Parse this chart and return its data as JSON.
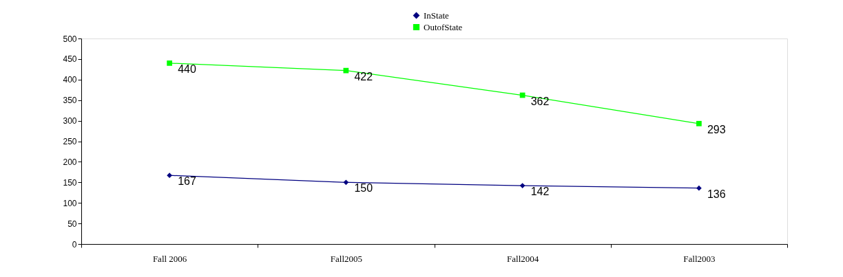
{
  "chart_data": {
    "type": "line",
    "categories": [
      "Fall 2006",
      "Fall2005",
      "Fall2004",
      "Fall2003"
    ],
    "series": [
      {
        "name": "InState",
        "color": "#000080",
        "marker": "diamond",
        "values": [
          167,
          150,
          142,
          136
        ]
      },
      {
        "name": "OutofState",
        "color": "#00ff00",
        "marker": "square",
        "values": [
          440,
          422,
          362,
          293
        ]
      }
    ],
    "ylim": [
      0,
      500
    ],
    "yticks": [
      0,
      50,
      100,
      150,
      200,
      250,
      300,
      350,
      400,
      450,
      500
    ],
    "grid": false,
    "legend": "top",
    "data_labels": true,
    "line_style": "solid"
  }
}
